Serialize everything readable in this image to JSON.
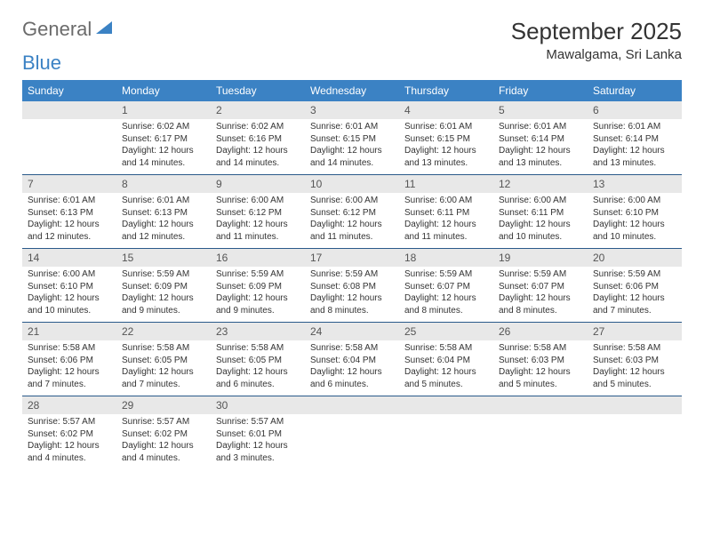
{
  "logo": {
    "name_part1": "General",
    "name_part2": "Blue"
  },
  "title": "September 2025",
  "location": "Mawalgama, Sri Lanka",
  "day_headers": [
    "Sunday",
    "Monday",
    "Tuesday",
    "Wednesday",
    "Thursday",
    "Friday",
    "Saturday"
  ],
  "colors": {
    "header_bg": "#3b82c4",
    "header_text": "#ffffff",
    "daynum_bg": "#e8e8e8",
    "border": "#2a5a8a",
    "logo_gray": "#6b6b6b",
    "logo_blue": "#3b82c4"
  },
  "weeks": [
    [
      {
        "empty": true
      },
      {
        "num": "1",
        "sunrise": "Sunrise: 6:02 AM",
        "sunset": "Sunset: 6:17 PM",
        "daylight": "Daylight: 12 hours and 14 minutes."
      },
      {
        "num": "2",
        "sunrise": "Sunrise: 6:02 AM",
        "sunset": "Sunset: 6:16 PM",
        "daylight": "Daylight: 12 hours and 14 minutes."
      },
      {
        "num": "3",
        "sunrise": "Sunrise: 6:01 AM",
        "sunset": "Sunset: 6:15 PM",
        "daylight": "Daylight: 12 hours and 14 minutes."
      },
      {
        "num": "4",
        "sunrise": "Sunrise: 6:01 AM",
        "sunset": "Sunset: 6:15 PM",
        "daylight": "Daylight: 12 hours and 13 minutes."
      },
      {
        "num": "5",
        "sunrise": "Sunrise: 6:01 AM",
        "sunset": "Sunset: 6:14 PM",
        "daylight": "Daylight: 12 hours and 13 minutes."
      },
      {
        "num": "6",
        "sunrise": "Sunrise: 6:01 AM",
        "sunset": "Sunset: 6:14 PM",
        "daylight": "Daylight: 12 hours and 13 minutes."
      }
    ],
    [
      {
        "num": "7",
        "sunrise": "Sunrise: 6:01 AM",
        "sunset": "Sunset: 6:13 PM",
        "daylight": "Daylight: 12 hours and 12 minutes."
      },
      {
        "num": "8",
        "sunrise": "Sunrise: 6:01 AM",
        "sunset": "Sunset: 6:13 PM",
        "daylight": "Daylight: 12 hours and 12 minutes."
      },
      {
        "num": "9",
        "sunrise": "Sunrise: 6:00 AM",
        "sunset": "Sunset: 6:12 PM",
        "daylight": "Daylight: 12 hours and 11 minutes."
      },
      {
        "num": "10",
        "sunrise": "Sunrise: 6:00 AM",
        "sunset": "Sunset: 6:12 PM",
        "daylight": "Daylight: 12 hours and 11 minutes."
      },
      {
        "num": "11",
        "sunrise": "Sunrise: 6:00 AM",
        "sunset": "Sunset: 6:11 PM",
        "daylight": "Daylight: 12 hours and 11 minutes."
      },
      {
        "num": "12",
        "sunrise": "Sunrise: 6:00 AM",
        "sunset": "Sunset: 6:11 PM",
        "daylight": "Daylight: 12 hours and 10 minutes."
      },
      {
        "num": "13",
        "sunrise": "Sunrise: 6:00 AM",
        "sunset": "Sunset: 6:10 PM",
        "daylight": "Daylight: 12 hours and 10 minutes."
      }
    ],
    [
      {
        "num": "14",
        "sunrise": "Sunrise: 6:00 AM",
        "sunset": "Sunset: 6:10 PM",
        "daylight": "Daylight: 12 hours and 10 minutes."
      },
      {
        "num": "15",
        "sunrise": "Sunrise: 5:59 AM",
        "sunset": "Sunset: 6:09 PM",
        "daylight": "Daylight: 12 hours and 9 minutes."
      },
      {
        "num": "16",
        "sunrise": "Sunrise: 5:59 AM",
        "sunset": "Sunset: 6:09 PM",
        "daylight": "Daylight: 12 hours and 9 minutes."
      },
      {
        "num": "17",
        "sunrise": "Sunrise: 5:59 AM",
        "sunset": "Sunset: 6:08 PM",
        "daylight": "Daylight: 12 hours and 8 minutes."
      },
      {
        "num": "18",
        "sunrise": "Sunrise: 5:59 AM",
        "sunset": "Sunset: 6:07 PM",
        "daylight": "Daylight: 12 hours and 8 minutes."
      },
      {
        "num": "19",
        "sunrise": "Sunrise: 5:59 AM",
        "sunset": "Sunset: 6:07 PM",
        "daylight": "Daylight: 12 hours and 8 minutes."
      },
      {
        "num": "20",
        "sunrise": "Sunrise: 5:59 AM",
        "sunset": "Sunset: 6:06 PM",
        "daylight": "Daylight: 12 hours and 7 minutes."
      }
    ],
    [
      {
        "num": "21",
        "sunrise": "Sunrise: 5:58 AM",
        "sunset": "Sunset: 6:06 PM",
        "daylight": "Daylight: 12 hours and 7 minutes."
      },
      {
        "num": "22",
        "sunrise": "Sunrise: 5:58 AM",
        "sunset": "Sunset: 6:05 PM",
        "daylight": "Daylight: 12 hours and 7 minutes."
      },
      {
        "num": "23",
        "sunrise": "Sunrise: 5:58 AM",
        "sunset": "Sunset: 6:05 PM",
        "daylight": "Daylight: 12 hours and 6 minutes."
      },
      {
        "num": "24",
        "sunrise": "Sunrise: 5:58 AM",
        "sunset": "Sunset: 6:04 PM",
        "daylight": "Daylight: 12 hours and 6 minutes."
      },
      {
        "num": "25",
        "sunrise": "Sunrise: 5:58 AM",
        "sunset": "Sunset: 6:04 PM",
        "daylight": "Daylight: 12 hours and 5 minutes."
      },
      {
        "num": "26",
        "sunrise": "Sunrise: 5:58 AM",
        "sunset": "Sunset: 6:03 PM",
        "daylight": "Daylight: 12 hours and 5 minutes."
      },
      {
        "num": "27",
        "sunrise": "Sunrise: 5:58 AM",
        "sunset": "Sunset: 6:03 PM",
        "daylight": "Daylight: 12 hours and 5 minutes."
      }
    ],
    [
      {
        "num": "28",
        "sunrise": "Sunrise: 5:57 AM",
        "sunset": "Sunset: 6:02 PM",
        "daylight": "Daylight: 12 hours and 4 minutes."
      },
      {
        "num": "29",
        "sunrise": "Sunrise: 5:57 AM",
        "sunset": "Sunset: 6:02 PM",
        "daylight": "Daylight: 12 hours and 4 minutes."
      },
      {
        "num": "30",
        "sunrise": "Sunrise: 5:57 AM",
        "sunset": "Sunset: 6:01 PM",
        "daylight": "Daylight: 12 hours and 3 minutes."
      },
      {
        "empty": true
      },
      {
        "empty": true
      },
      {
        "empty": true
      },
      {
        "empty": true
      }
    ]
  ]
}
